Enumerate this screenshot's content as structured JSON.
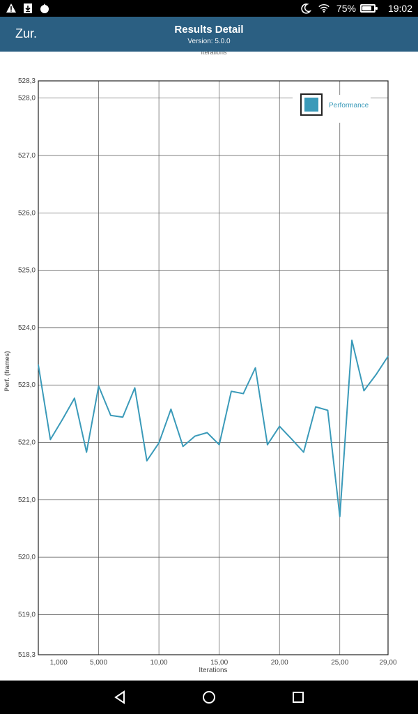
{
  "status_bar": {
    "left_icons": [
      "warning-icon",
      "download-icon",
      "drop-icon"
    ],
    "right_icons": [
      "moon-icon",
      "wifi-icon",
      "battery-icon"
    ],
    "battery_percent_text": "75%",
    "battery_level": 0.75,
    "time": "19:02"
  },
  "app_bar": {
    "back_label": "Zur.",
    "title": "Results Detail",
    "subtitle": "Version: 5.0.0",
    "accent": "#2b5f82"
  },
  "chart": {
    "top_axis_label_partial": "Iterations",
    "legend_label": "Performance",
    "line_color": "#3a9ab9"
  },
  "chart_data": {
    "type": "line",
    "title": "",
    "xlabel": "Iterations",
    "ylabel": "Perf. (frames)",
    "xlim": [
      1,
      29
    ],
    "ylim": [
      518.3,
      528.3
    ],
    "x_ticks": [
      "1,000",
      "5,000",
      "10,00",
      "15,00",
      "20,00",
      "25,00",
      "29,00"
    ],
    "x_tick_values": [
      1,
      5,
      10,
      15,
      20,
      25,
      29
    ],
    "y_ticks": [
      "518,3",
      "519,0",
      "520,0",
      "521,0",
      "522,0",
      "523,0",
      "524,0",
      "525,0",
      "526,0",
      "527,0",
      "528,0",
      "528,3"
    ],
    "y_tick_values": [
      518.3,
      519,
      520,
      521,
      522,
      523,
      524,
      525,
      526,
      527,
      528,
      528.3
    ],
    "grid": true,
    "legend_position": "top-right",
    "series": [
      {
        "name": "Performance",
        "x": [
          0,
          1,
          2,
          3,
          4,
          5,
          6,
          7,
          8,
          9,
          10,
          11,
          12,
          13,
          14,
          15,
          16,
          17,
          18,
          19,
          20,
          21,
          22,
          23,
          24,
          25,
          26,
          27,
          28,
          29
        ],
        "values": [
          523.35,
          522.05,
          522.4,
          522.77,
          521.83,
          522.98,
          522.47,
          522.44,
          522.95,
          521.68,
          521.99,
          522.58,
          521.93,
          522.11,
          522.17,
          521.96,
          522.89,
          522.85,
          523.3,
          521.96,
          522.28,
          522.06,
          521.83,
          522.62,
          522.56,
          520.71,
          523.78,
          522.9,
          523.18,
          523.5
        ]
      }
    ]
  },
  "nav_bar": {
    "icons": [
      "back-triangle-icon",
      "home-circle-icon",
      "recents-square-icon"
    ]
  }
}
